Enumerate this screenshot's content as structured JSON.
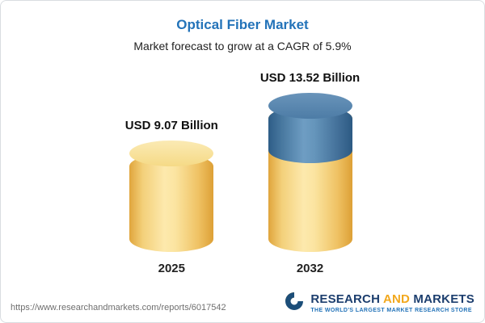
{
  "header": {
    "title": "Optical Fiber Market",
    "subtitle": "Market forecast to grow at a CAGR of 5.9%"
  },
  "chart_data": {
    "type": "bar",
    "title": "Optical Fiber Market",
    "subtitle": "Market forecast to grow at a CAGR of 5.9%",
    "categories": [
      "2025",
      "2032"
    ],
    "values": [
      9.07,
      13.52
    ],
    "value_labels": [
      "USD 9.07 Billion",
      "USD 13.52 Billion"
    ],
    "unit": "USD Billion",
    "cagr_percent": 5.9,
    "ylim": [
      0,
      14
    ],
    "legend": "none",
    "grid": "off",
    "bar_style": "3d-cylinder",
    "colors": {
      "base_segment": "#f6d57f",
      "growth_segment": "#4d7ca6",
      "title_accent": "#2373b9"
    },
    "notes": "2032 cylinder shows the portion above the 2025 value (13.52 - 9.07 = 4.45) as a blue top segment"
  },
  "footer": {
    "url": "https://www.researchandmarkets.com/reports/6017542",
    "logo": {
      "word1": "RESEARCH",
      "word2": "AND",
      "word3": "MARKETS",
      "tagline": "THE WORLD'S LARGEST MARKET RESEARCH STORE"
    }
  }
}
